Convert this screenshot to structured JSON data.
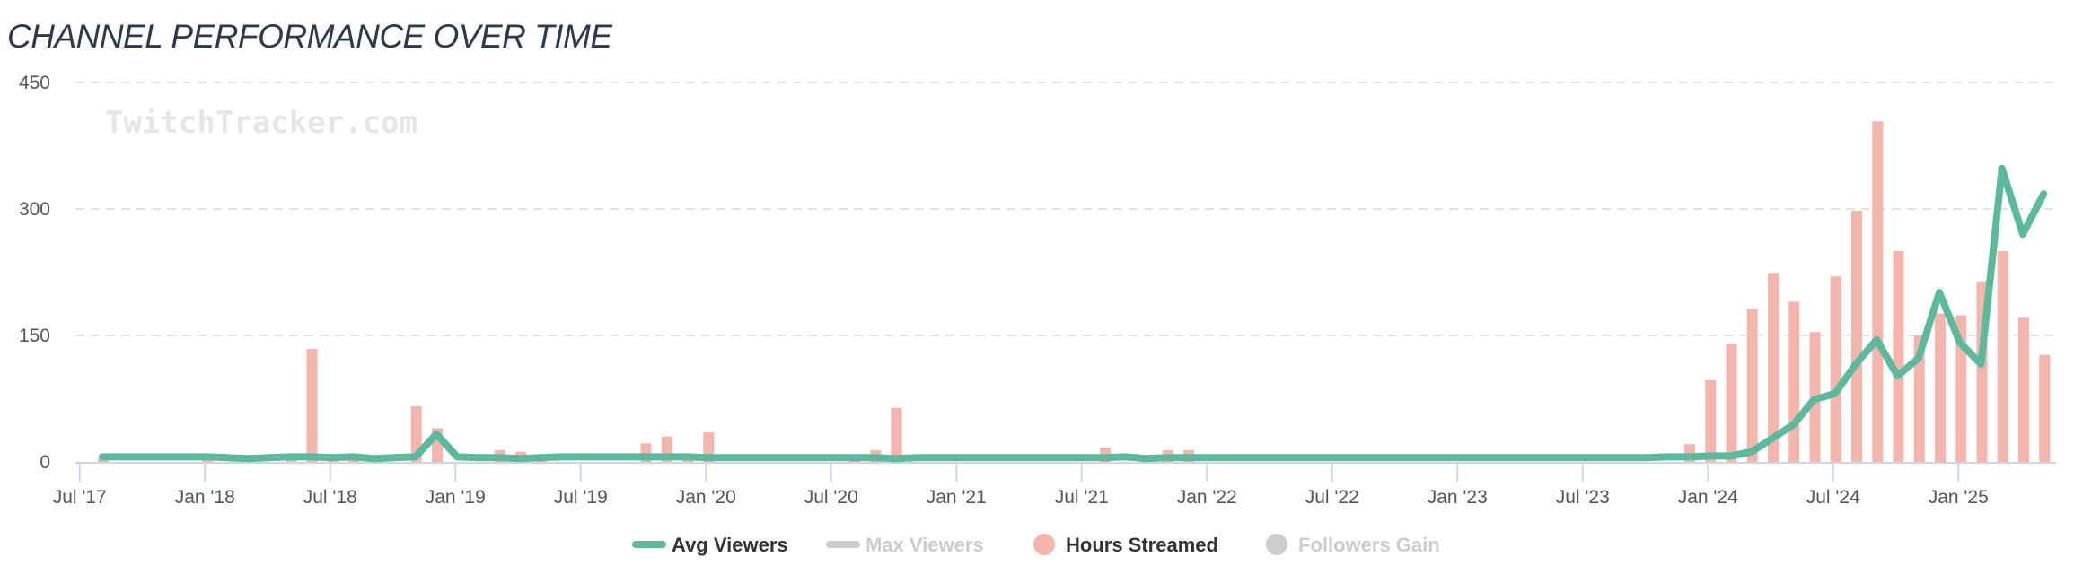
{
  "title": "CHANNEL PERFORMANCE OVER TIME",
  "watermark": "TwitchTracker.com",
  "chart_data": {
    "type": "bar+line",
    "title": "CHANNEL PERFORMANCE OVER TIME",
    "x_start_month": "2017-08",
    "x_end_month": "2025-05",
    "ylim": [
      0,
      450
    ],
    "yticks": [
      "0",
      "150",
      "300",
      "450"
    ],
    "ytick_values": [
      0,
      150,
      300,
      450
    ],
    "xticks": [
      {
        "label": "Jul '17",
        "month_index": -1
      },
      {
        "label": "Jan '18",
        "month_index": 5
      },
      {
        "label": "Jul '18",
        "month_index": 11
      },
      {
        "label": "Jan '19",
        "month_index": 17
      },
      {
        "label": "Jul '19",
        "month_index": 23
      },
      {
        "label": "Jan '20",
        "month_index": 29
      },
      {
        "label": "Jul '20",
        "month_index": 35
      },
      {
        "label": "Jan '21",
        "month_index": 41
      },
      {
        "label": "Jul '21",
        "month_index": 47
      },
      {
        "label": "Jan '22",
        "month_index": 53
      },
      {
        "label": "Jul '22",
        "month_index": 59
      },
      {
        "label": "Jan '23",
        "month_index": 65
      },
      {
        "label": "Jul '23",
        "month_index": 71
      },
      {
        "label": "Jan '24",
        "month_index": 77
      },
      {
        "label": "Jul '24",
        "month_index": 83
      },
      {
        "label": "Jan '25",
        "month_index": 89
      }
    ],
    "grid": true,
    "legend_position": "bottom-center",
    "series": [
      {
        "name": "Avg Viewers",
        "type": "line",
        "color": "#5cba9c",
        "visible": true,
        "values": [
          6,
          6,
          6,
          6,
          6,
          6,
          5,
          4,
          5,
          6,
          6,
          5,
          6,
          4,
          5,
          6,
          33,
          6,
          5,
          5,
          4,
          5,
          6,
          6,
          6,
          6,
          6,
          6,
          6,
          5,
          5,
          5,
          5,
          5,
          5,
          5,
          5,
          5,
          4,
          5,
          5,
          5,
          5,
          5,
          5,
          5,
          5,
          5,
          5,
          6,
          4,
          5,
          5,
          5,
          5,
          5,
          5,
          5,
          5,
          5,
          5,
          5,
          5,
          5,
          5,
          5,
          5,
          5,
          5,
          5,
          5,
          5,
          5,
          5,
          5,
          6,
          6,
          7,
          7,
          12,
          28,
          44,
          74,
          81,
          116,
          145,
          102,
          123,
          201,
          141,
          116,
          348,
          270,
          318
        ]
      },
      {
        "name": "Max Viewers",
        "type": "line",
        "color": "#cccccc",
        "visible": false
      },
      {
        "name": "Hours Streamed",
        "type": "bar",
        "color": "#f4b5ac",
        "visible": true,
        "values": [
          4,
          null,
          null,
          null,
          null,
          3,
          null,
          3,
          null,
          4,
          134,
          4,
          3,
          null,
          null,
          66,
          40,
          null,
          null,
          14,
          12,
          4,
          null,
          null,
          null,
          null,
          22,
          30,
          4,
          35,
          null,
          null,
          null,
          null,
          null,
          null,
          4,
          14,
          64,
          null,
          null,
          null,
          null,
          null,
          null,
          null,
          null,
          null,
          17,
          null,
          null,
          14,
          14,
          null,
          null,
          null,
          null,
          null,
          null,
          null,
          null,
          null,
          null,
          null,
          null,
          null,
          null,
          null,
          null,
          null,
          null,
          null,
          null,
          null,
          null,
          null,
          21,
          97,
          140,
          182,
          224,
          190,
          154,
          220,
          298,
          404,
          250,
          150,
          176,
          174,
          214,
          250,
          171,
          127
        ]
      },
      {
        "name": "Followers Gain",
        "type": "bar",
        "color": "#cccccc",
        "visible": false
      }
    ]
  },
  "legend": [
    {
      "label": "Avg Viewers",
      "active": true,
      "color": "#5cba9c",
      "symbol": "line"
    },
    {
      "label": "Max Viewers",
      "active": false,
      "color": "#cccccc",
      "symbol": "line"
    },
    {
      "label": "Hours Streamed",
      "active": true,
      "color": "#f4b5ac",
      "symbol": "circle"
    },
    {
      "label": "Followers Gain",
      "active": false,
      "color": "#cccccc",
      "symbol": "circle"
    }
  ]
}
